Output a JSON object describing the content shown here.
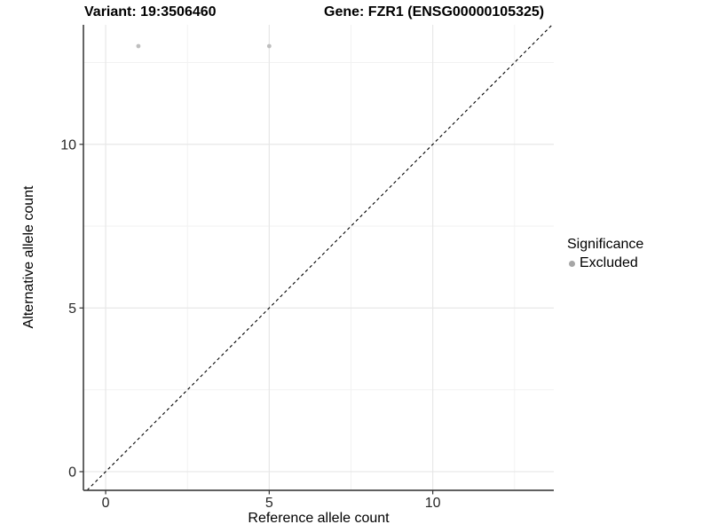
{
  "chart_data": {
    "type": "scatter",
    "title_left": "Variant: 19:3506460",
    "title_right": "Gene: FZR1 (ENSG00000105325)",
    "xlabel": "Reference allele count",
    "ylabel": "Alternative allele count",
    "xlim": [
      -0.68,
      13.7
    ],
    "ylim": [
      -0.57,
      13.65
    ],
    "x_major_ticks": [
      0,
      5,
      10
    ],
    "x_tick_labels": [
      "0",
      "5",
      "10"
    ],
    "x_minor_ticks": [
      2.5,
      7.5,
      12.5
    ],
    "y_major_ticks": [
      0,
      5,
      10
    ],
    "y_tick_labels": [
      "0",
      "5",
      "10"
    ],
    "y_minor_ticks": [
      2.5,
      7.5,
      12.5
    ],
    "grid": "major+minor",
    "identity_line": {
      "slope": 1,
      "intercept": 0,
      "style": "dashed",
      "color": "#000000"
    },
    "series": [
      {
        "name": "Excluded",
        "color": "#bebebe",
        "points": [
          [
            1,
            13
          ],
          [
            5,
            13
          ]
        ]
      }
    ],
    "legend": {
      "title": "Significance",
      "position": "right",
      "items": [
        {
          "label": "Excluded",
          "color": "#a6a6a6",
          "marker": "circle"
        }
      ]
    },
    "colors": {
      "grid_major": "#e7e7e7",
      "grid_minor": "#f2f2f2",
      "axis_line": "#4a4a4a",
      "tick": "#333333",
      "tick_text": "#262626"
    }
  }
}
